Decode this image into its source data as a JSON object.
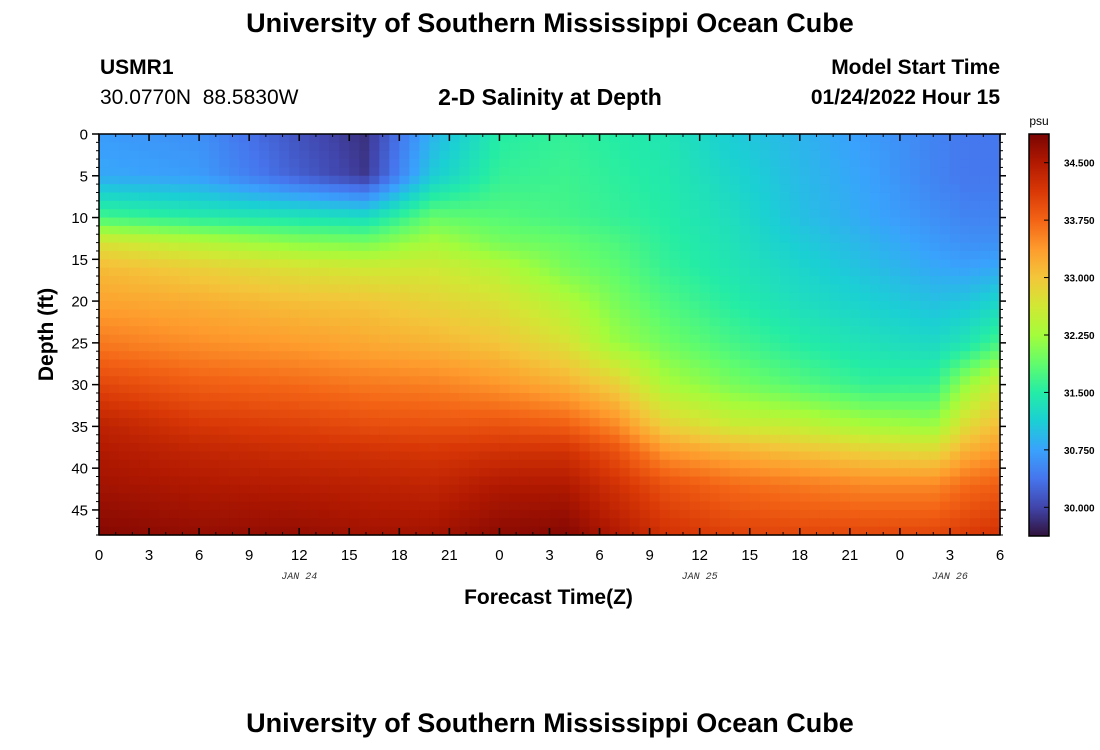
{
  "header": {
    "title": "University of Southern Mississippi Ocean Cube",
    "station_id": "USMR1",
    "station_coords": "30.0770N  88.5830W",
    "chart_subtitle": "2-D Salinity at Depth",
    "start_label": "Model Start Time",
    "start_value": "01/24/2022 Hour 15"
  },
  "footer": {
    "title": "University of Southern Mississippi Ocean Cube"
  },
  "chart_data": {
    "type": "heatmap",
    "title": "2-D Salinity at Depth",
    "xlabel": "Forecast Time(Z)",
    "ylabel": "Depth (ft)",
    "x_range_hours": [
      0,
      54
    ],
    "x_tick_hours": [
      0,
      3,
      6,
      9,
      12,
      15,
      18,
      21,
      24,
      27,
      30,
      33,
      36,
      39,
      42,
      45,
      48,
      51,
      54
    ],
    "x_tick_labels": [
      "0",
      "3",
      "6",
      "9",
      "12",
      "15",
      "18",
      "21",
      "0",
      "3",
      "6",
      "9",
      "12",
      "15",
      "18",
      "21",
      "0",
      "3",
      "6"
    ],
    "date_labels": [
      {
        "hour": 12,
        "text": "JAN 24"
      },
      {
        "hour": 36,
        "text": "JAN 25"
      },
      {
        "hour": 51,
        "text": "JAN 26"
      }
    ],
    "y_range_ft": [
      0,
      48
    ],
    "y_tick_ft": [
      0,
      5,
      10,
      15,
      20,
      25,
      30,
      35,
      40,
      45
    ],
    "y_tick_labels": [
      "0",
      "5",
      "10",
      "15",
      "20",
      "25",
      "30",
      "35",
      "40",
      "45"
    ],
    "colorbar": {
      "unit": "psu",
      "min": 29.625,
      "max": 34.875,
      "ticks": [
        34.5,
        33.75,
        33.0,
        32.25,
        31.5,
        30.75,
        30.0
      ],
      "tick_labels": [
        "34.500",
        "33.750",
        "33.000",
        "32.250",
        "31.500",
        "30.750",
        "30.000"
      ],
      "colors": [
        "#30123b",
        "#4145ab",
        "#4675ed",
        "#39a2fc",
        "#1bcfd4",
        "#24eca6",
        "#61fc6c",
        "#a4fc3b",
        "#d1e834",
        "#f3c63a",
        "#fe9b2d",
        "#f36315",
        "#d93806",
        "#b11901",
        "#7a0403"
      ]
    },
    "salinity_psu": {
      "times_h": [
        0,
        6,
        12,
        16,
        20,
        24,
        28,
        31,
        34,
        38,
        42,
        46,
        50,
        52,
        54
      ],
      "depths_ft": [
        0,
        5,
        10,
        13,
        16,
        20,
        25,
        30,
        35,
        38,
        42,
        48
      ],
      "rows": [
        [
          30.7,
          30.6,
          30.1,
          29.85,
          30.9,
          31.5,
          31.6,
          31.5,
          31.4,
          31.1,
          30.9,
          30.7,
          30.5,
          30.4,
          30.4
        ],
        [
          30.8,
          30.7,
          30.2,
          29.9,
          31.1,
          31.6,
          31.65,
          31.55,
          31.45,
          31.2,
          30.95,
          30.75,
          30.5,
          30.4,
          30.4
        ],
        [
          31.7,
          31.5,
          31.4,
          31.3,
          31.9,
          31.8,
          31.7,
          31.6,
          31.5,
          31.3,
          31.0,
          30.8,
          30.6,
          30.5,
          30.5
        ],
        [
          32.7,
          32.4,
          32.1,
          32.0,
          32.3,
          32.0,
          31.9,
          31.75,
          31.55,
          31.35,
          31.1,
          30.9,
          30.7,
          30.6,
          30.6
        ],
        [
          33.1,
          32.9,
          32.7,
          32.6,
          32.6,
          32.4,
          32.0,
          31.85,
          31.6,
          31.4,
          31.2,
          31.0,
          30.8,
          30.75,
          30.8
        ],
        [
          33.3,
          33.2,
          33.05,
          33.0,
          32.85,
          32.7,
          32.35,
          32.0,
          31.75,
          31.5,
          31.3,
          31.15,
          31.0,
          31.05,
          31.2
        ],
        [
          33.6,
          33.45,
          33.35,
          33.25,
          33.15,
          33.0,
          32.7,
          32.2,
          31.95,
          31.7,
          31.5,
          31.35,
          31.25,
          31.4,
          31.7
        ],
        [
          34.0,
          33.8,
          33.7,
          33.6,
          33.55,
          33.4,
          33.2,
          32.9,
          32.3,
          32.0,
          31.8,
          31.6,
          31.6,
          32.2,
          32.6
        ],
        [
          34.4,
          34.15,
          34.05,
          33.95,
          33.9,
          33.9,
          33.8,
          33.5,
          32.9,
          32.6,
          32.5,
          32.3,
          32.2,
          32.8,
          33.1
        ],
        [
          34.5,
          34.35,
          34.25,
          34.2,
          34.15,
          34.2,
          34.2,
          33.9,
          33.4,
          33.2,
          33.05,
          32.9,
          32.8,
          33.2,
          33.4
        ],
        [
          34.6,
          34.5,
          34.45,
          34.4,
          34.35,
          34.5,
          34.5,
          34.2,
          33.9,
          33.7,
          33.6,
          33.5,
          33.5,
          33.7,
          33.8
        ],
        [
          34.8,
          34.7,
          34.7,
          34.6,
          34.6,
          34.75,
          34.8,
          34.5,
          34.2,
          34.05,
          34.0,
          34.0,
          34.0,
          34.1,
          34.2
        ]
      ]
    }
  }
}
